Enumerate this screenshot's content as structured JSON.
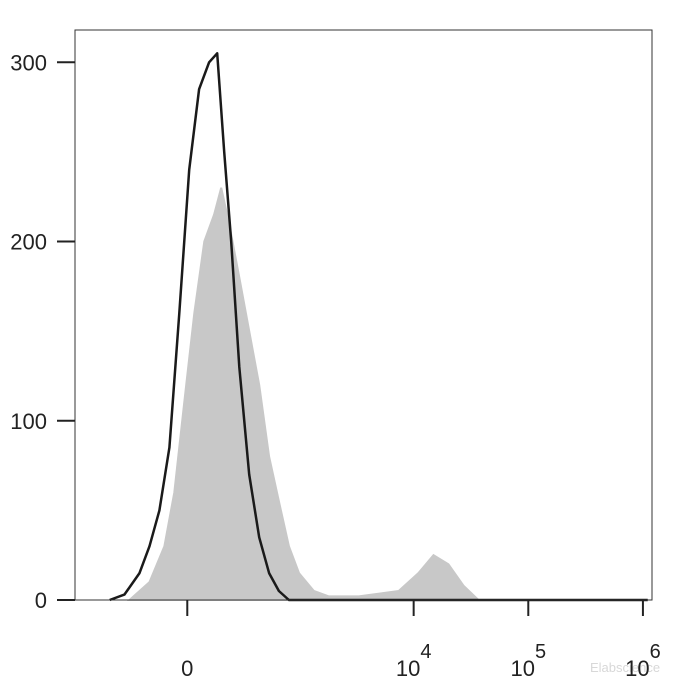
{
  "chart_data": {
    "type": "histogram-overlay",
    "xscale": "arcsinh",
    "xlim": [
      -1000,
      1200000
    ],
    "ylim": [
      0,
      318
    ],
    "xticks": [
      {
        "value": 0,
        "label": "0"
      },
      {
        "value": 10000,
        "label": "10",
        "exponent": "4"
      },
      {
        "value": 100000,
        "label": "10",
        "exponent": "5"
      },
      {
        "value": 1000000,
        "label": "10",
        "exponent": "6"
      }
    ],
    "yticks": [
      0,
      100,
      200,
      300
    ],
    "watermark": "Elabscience",
    "series": [
      {
        "color": "#c8c8c8",
        "fill": true,
        "x": [
          -305,
          -177,
          -101,
          -56,
          -13,
          30,
          74,
          120,
          156,
          200,
          264,
          337,
          424,
          528,
          651,
          803,
          988,
          1340,
          1815,
          3310,
          7400,
          11000,
          14900,
          20100,
          27200,
          36700,
          1100000
        ],
        "values": [
          0,
          10,
          30,
          60,
          110,
          160,
          200,
          215,
          230,
          210,
          180,
          150,
          120,
          80,
          55,
          30,
          15,
          5,
          2,
          2,
          5,
          15,
          25,
          20,
          8,
          0,
          0
        ]
      },
      {
        "color": "#1a1a1a",
        "fill": false,
        "x": [
          -481,
          -345,
          -236,
          -177,
          -125,
          -78,
          -34,
          8,
          51,
          96,
          135,
          172,
          212,
          264,
          337,
          424,
          528,
          651,
          803,
          1100000
        ],
        "values": [
          0,
          3,
          15,
          30,
          50,
          85,
          160,
          240,
          285,
          300,
          305,
          250,
          200,
          130,
          70,
          35,
          15,
          5,
          0,
          0
        ]
      }
    ]
  }
}
